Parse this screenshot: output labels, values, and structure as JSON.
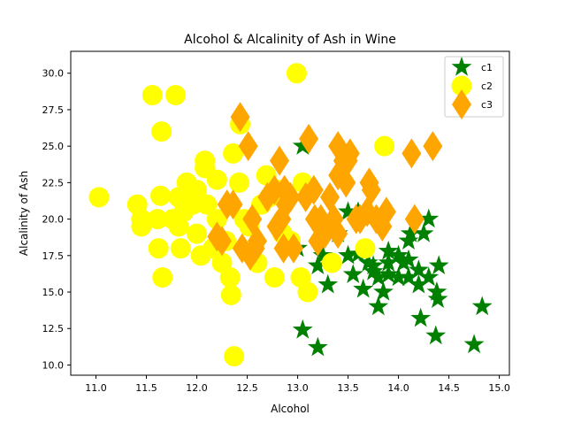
{
  "chart_data": {
    "type": "scatter",
    "title": "Alcohol & Alcalinity of Ash in Wine",
    "xlabel": "Alcohol",
    "ylabel": "Alcalinity of Ash",
    "xlim": [
      10.75,
      15.1
    ],
    "ylim": [
      9.3,
      31.5
    ],
    "xticks": [
      "11.0",
      "11.5",
      "12.0",
      "12.5",
      "13.0",
      "13.5",
      "14.0",
      "14.5",
      "15.0"
    ],
    "yticks": [
      "10.0",
      "12.5",
      "15.0",
      "17.5",
      "20.0",
      "22.5",
      "25.0",
      "27.5",
      "30.0"
    ],
    "grid": false,
    "legend_position": "top-right",
    "series": [
      {
        "name": "c1",
        "marker": "star",
        "color": "#008000",
        "points": [
          [
            13.05,
            25.0
          ],
          [
            13.0,
            18.0
          ],
          [
            13.2,
            16.8
          ],
          [
            13.25,
            17.5
          ],
          [
            13.3,
            15.5
          ],
          [
            13.4,
            19.0
          ],
          [
            13.5,
            17.5
          ],
          [
            13.5,
            20.5
          ],
          [
            13.55,
            16.2
          ],
          [
            13.6,
            20.5
          ],
          [
            13.65,
            15.2
          ],
          [
            13.7,
            17.0
          ],
          [
            13.75,
            16.8
          ],
          [
            13.8,
            16.0
          ],
          [
            13.8,
            14.0
          ],
          [
            13.85,
            15.0
          ],
          [
            13.9,
            16.2
          ],
          [
            13.9,
            17.0
          ],
          [
            14.0,
            16.0
          ],
          [
            14.05,
            17.0
          ],
          [
            14.1,
            18.5
          ],
          [
            14.1,
            16.0
          ],
          [
            14.12,
            19.0
          ],
          [
            14.2,
            15.5
          ],
          [
            14.2,
            16.5
          ],
          [
            14.22,
            13.2
          ],
          [
            14.25,
            19.0
          ],
          [
            14.3,
            20.0
          ],
          [
            14.3,
            16.0
          ],
          [
            14.38,
            15.0
          ],
          [
            14.39,
            14.5
          ],
          [
            14.37,
            12.0
          ],
          [
            14.4,
            16.8
          ],
          [
            14.75,
            11.4
          ],
          [
            14.83,
            14.0
          ],
          [
            13.05,
            12.4
          ],
          [
            13.2,
            11.2
          ],
          [
            13.9,
            17.8
          ],
          [
            14.0,
            17.5
          ],
          [
            13.75,
            16.4
          ],
          [
            13.6,
            17.6
          ],
          [
            14.1,
            17.2
          ]
        ]
      },
      {
        "name": "c2",
        "marker": "circle",
        "color": "#ffff00",
        "points": [
          [
            11.03,
            21.5
          ],
          [
            11.41,
            21.0
          ],
          [
            11.45,
            20.0
          ],
          [
            11.45,
            19.5
          ],
          [
            11.56,
            28.5
          ],
          [
            11.61,
            20.0
          ],
          [
            11.62,
            18.0
          ],
          [
            11.64,
            21.6
          ],
          [
            11.65,
            26.0
          ],
          [
            11.66,
            16.0
          ],
          [
            11.76,
            20.0
          ],
          [
            11.79,
            28.5
          ],
          [
            11.82,
            21.5
          ],
          [
            11.82,
            19.5
          ],
          [
            11.84,
            18.0
          ],
          [
            11.87,
            20.5
          ],
          [
            11.96,
            21.0
          ],
          [
            12.0,
            19.0
          ],
          [
            12.0,
            22.0
          ],
          [
            12.04,
            17.5
          ],
          [
            12.08,
            24.0
          ],
          [
            12.08,
            23.5
          ],
          [
            12.1,
            21.0
          ],
          [
            12.16,
            18.0
          ],
          [
            12.2,
            22.7
          ],
          [
            12.25,
            17.0
          ],
          [
            12.29,
            18.5
          ],
          [
            12.33,
            16.0
          ],
          [
            12.34,
            14.8
          ],
          [
            12.36,
            24.5
          ],
          [
            12.37,
            10.6
          ],
          [
            12.42,
            22.5
          ],
          [
            12.43,
            26.5
          ],
          [
            12.47,
            20.0
          ],
          [
            12.52,
            19.5
          ],
          [
            12.6,
            17.0
          ],
          [
            12.64,
            21.0
          ],
          [
            12.69,
            23.0
          ],
          [
            12.72,
            21.5
          ],
          [
            12.77,
            16.0
          ],
          [
            12.81,
            22.0
          ],
          [
            12.85,
            19.0
          ],
          [
            12.93,
            18.5
          ],
          [
            12.99,
            30.0
          ],
          [
            13.03,
            16.0
          ],
          [
            13.05,
            22.5
          ],
          [
            13.1,
            15.0
          ],
          [
            13.34,
            17.0
          ],
          [
            13.67,
            18.0
          ],
          [
            13.86,
            25.0
          ],
          [
            12.2,
            20.0
          ],
          [
            11.9,
            22.5
          ]
        ]
      },
      {
        "name": "c3",
        "marker": "diamond",
        "color": "#ffa500",
        "points": [
          [
            12.2,
            18.8
          ],
          [
            12.25,
            18.5
          ],
          [
            12.3,
            21.0
          ],
          [
            12.36,
            21.0
          ],
          [
            12.43,
            27.0
          ],
          [
            12.51,
            25.0
          ],
          [
            12.53,
            17.5
          ],
          [
            12.55,
            20.0
          ],
          [
            12.58,
            18.0
          ],
          [
            12.6,
            18.5
          ],
          [
            12.7,
            21.5
          ],
          [
            12.77,
            22.0
          ],
          [
            12.79,
            19.5
          ],
          [
            12.82,
            24.0
          ],
          [
            12.84,
            20.0
          ],
          [
            12.86,
            18.0
          ],
          [
            12.87,
            22.0
          ],
          [
            12.88,
            21.0
          ],
          [
            12.93,
            21.5
          ],
          [
            12.96,
            18.0
          ],
          [
            13.08,
            21.5
          ],
          [
            13.11,
            25.5
          ],
          [
            13.16,
            22.0
          ],
          [
            13.17,
            20.0
          ],
          [
            13.23,
            20.0
          ],
          [
            13.27,
            19.0
          ],
          [
            13.32,
            21.5
          ],
          [
            13.36,
            20.0
          ],
          [
            13.4,
            25.0
          ],
          [
            13.4,
            23.0
          ],
          [
            13.45,
            24.0
          ],
          [
            13.48,
            22.5
          ],
          [
            13.5,
            24.0
          ],
          [
            13.52,
            24.5
          ],
          [
            13.58,
            20.0
          ],
          [
            13.62,
            20.0
          ],
          [
            13.69,
            20.5
          ],
          [
            13.71,
            22.5
          ],
          [
            13.73,
            22.0
          ],
          [
            13.78,
            20.0
          ],
          [
            13.84,
            19.5
          ],
          [
            13.88,
            20.5
          ],
          [
            14.13,
            24.5
          ],
          [
            14.16,
            20.0
          ],
          [
            14.34,
            25.0
          ],
          [
            13.4,
            19.0
          ],
          [
            13.2,
            18.5
          ],
          [
            12.45,
            18.0
          ]
        ]
      }
    ]
  }
}
